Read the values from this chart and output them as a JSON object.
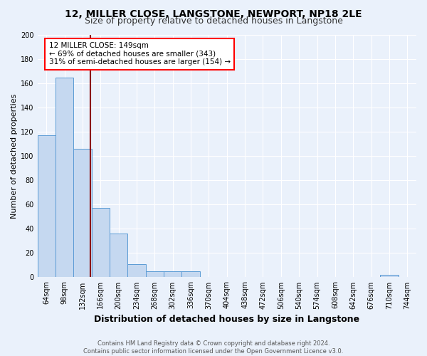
{
  "title": "12, MILLER CLOSE, LANGSTONE, NEWPORT, NP18 2LE",
  "subtitle": "Size of property relative to detached houses in Langstone",
  "xlabel": "Distribution of detached houses by size in Langstone",
  "ylabel": "Number of detached properties",
  "footer_line1": "Contains HM Land Registry data © Crown copyright and database right 2024.",
  "footer_line2": "Contains public sector information licensed under the Open Government Licence v3.0.",
  "bin_labels": [
    "64sqm",
    "98sqm",
    "132sqm",
    "166sqm",
    "200sqm",
    "234sqm",
    "268sqm",
    "302sqm",
    "336sqm",
    "370sqm",
    "404sqm",
    "438sqm",
    "472sqm",
    "506sqm",
    "540sqm",
    "574sqm",
    "608sqm",
    "642sqm",
    "676sqm",
    "710sqm",
    "744sqm"
  ],
  "bar_values": [
    117,
    165,
    106,
    57,
    36,
    11,
    5,
    5,
    5,
    0,
    0,
    0,
    0,
    0,
    0,
    0,
    0,
    0,
    0,
    2,
    0
  ],
  "bar_color": "#c5d8f0",
  "bar_edge_color": "#5b9bd5",
  "bg_color": "#eaf1fb",
  "grid_color": "#ffffff",
  "fig_bg_color": "#eaf1fb",
  "ylim": [
    0,
    200
  ],
  "yticks": [
    0,
    20,
    40,
    60,
    80,
    100,
    120,
    140,
    160,
    180,
    200
  ],
  "red_line_x": 2.44,
  "annotation_text_line1": "12 MILLER CLOSE: 149sqm",
  "annotation_text_line2": "← 69% of detached houses are smaller (343)",
  "annotation_text_line3": "31% of semi-detached houses are larger (154) →",
  "title_fontsize": 10,
  "subtitle_fontsize": 9,
  "xlabel_fontsize": 9,
  "ylabel_fontsize": 8,
  "tick_fontsize": 7,
  "annotation_fontsize": 7.5,
  "footer_fontsize": 6
}
